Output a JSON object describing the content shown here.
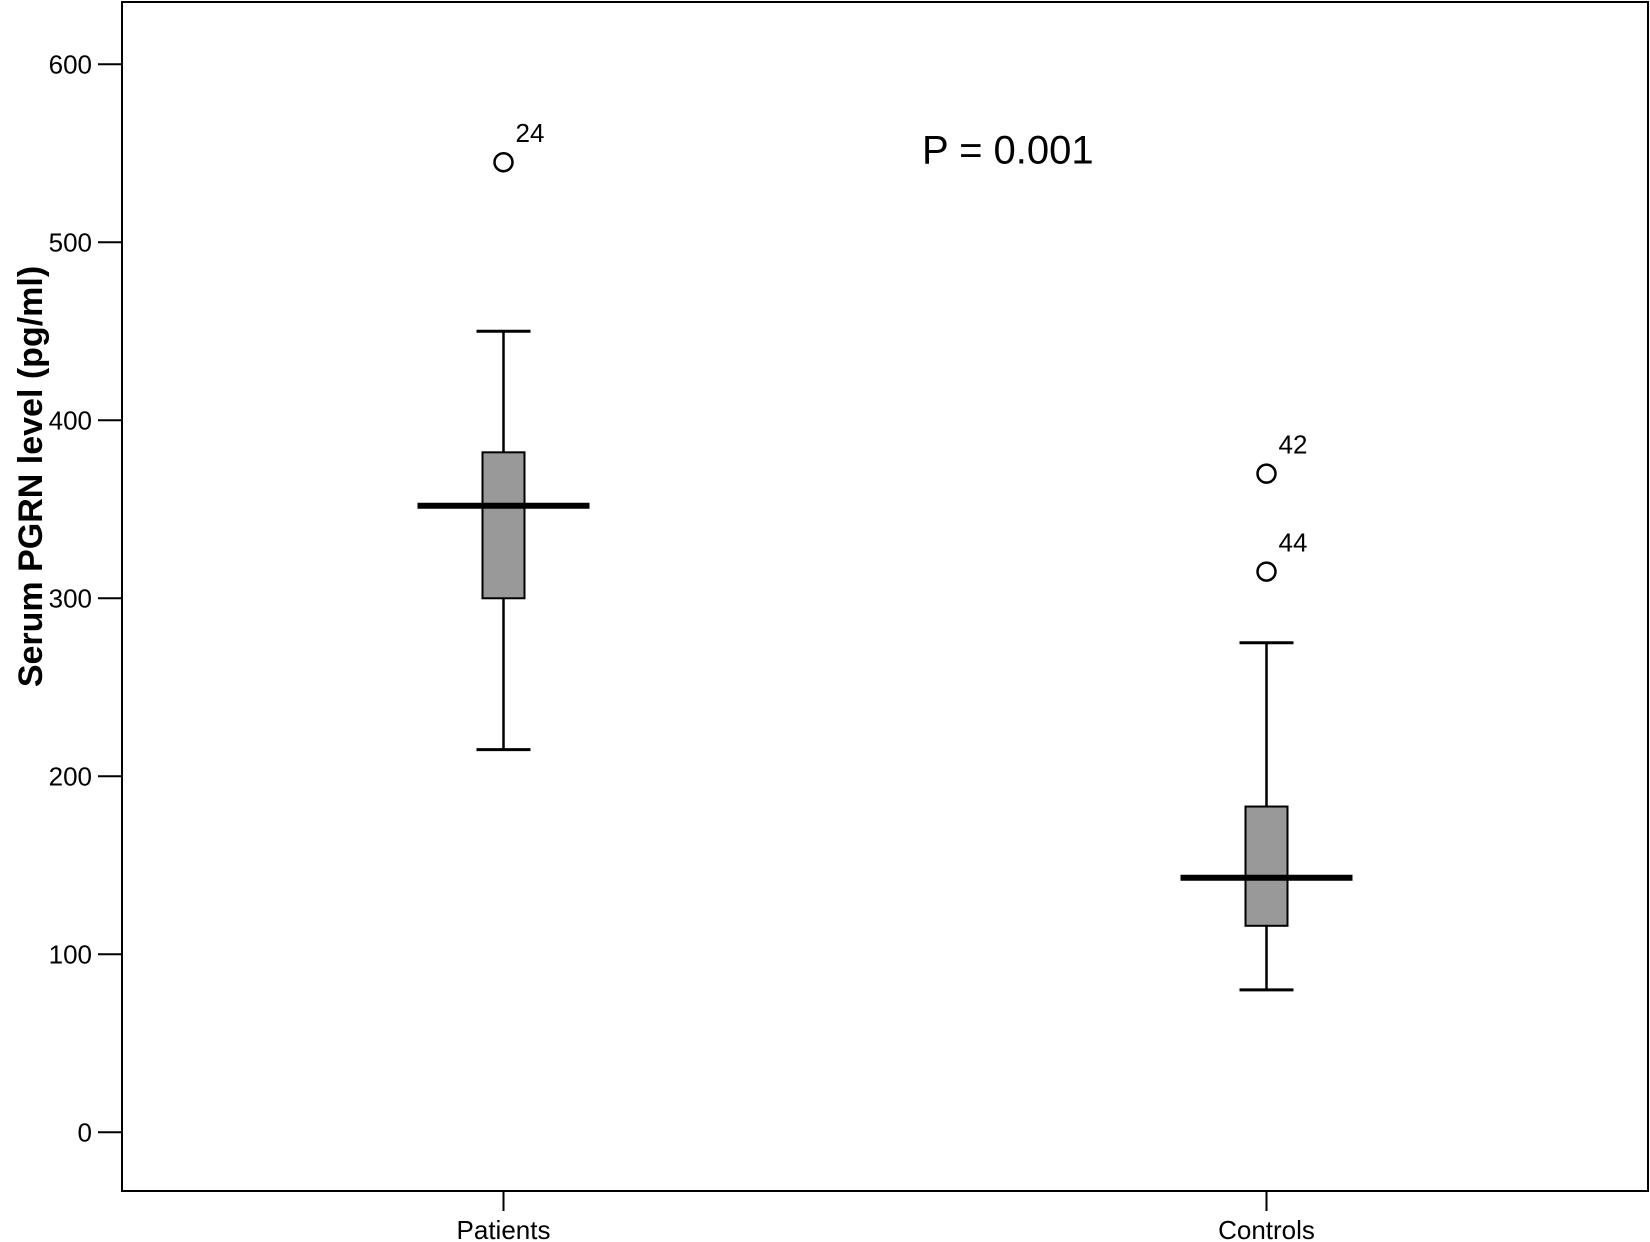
{
  "chart_data": {
    "type": "box",
    "ylabel": "Serum PGRN level (pg/ml)",
    "xlabel": "",
    "ylim": [
      -33,
      635
    ],
    "yticks": [
      0,
      100,
      200,
      300,
      400,
      500,
      600
    ],
    "grid": false,
    "annotation": "P = 0.001",
    "box_color": "#999999",
    "groups": [
      {
        "category": "Patients",
        "whisker_low": 215,
        "q1": 300,
        "median": 352,
        "q3": 382,
        "whisker_high": 450,
        "outliers": [
          {
            "value": 545,
            "label": "24"
          }
        ]
      },
      {
        "category": "Controls",
        "whisker_low": 80,
        "q1": 116,
        "median": 143,
        "q3": 183,
        "whisker_high": 275,
        "outliers": [
          {
            "value": 370,
            "label": "42"
          },
          {
            "value": 315,
            "label": "44"
          }
        ]
      }
    ]
  }
}
